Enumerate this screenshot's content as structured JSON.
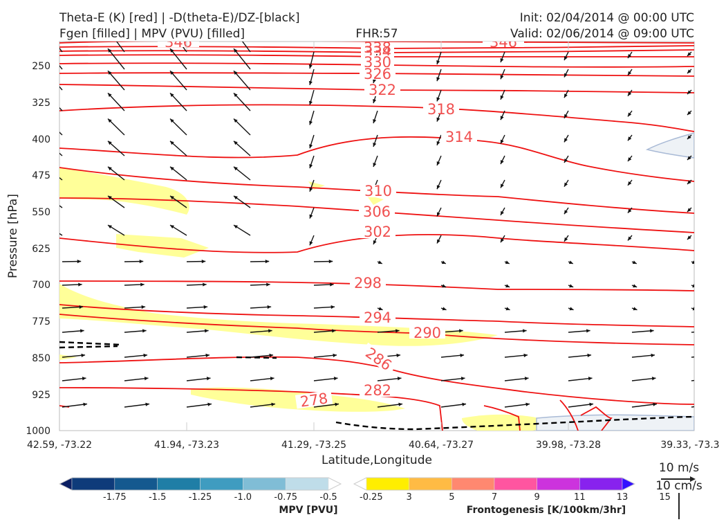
{
  "header": {
    "left_line1": "Theta-E (K) [red] | -D(theta-E)/DZ-[black]",
    "left_line2": "Fgen [filled] | MPV (PVU) [filled]",
    "center": "FHR:57",
    "init": "Init: 02/04/2014 @ 00:00 UTC",
    "valid": "Valid: 02/06/2014 @ 09:00 UTC"
  },
  "chart_data": {
    "type": "cross-section",
    "xlabel": "Latitude,Longitude",
    "ylabel": "Pressure [hPa]",
    "x_ticks": [
      "42.59, -73.22",
      "41.94, -73.23",
      "41.29, -73.25",
      "40.64, -73.27",
      "39.98, -73.28",
      "39.33, -73.3"
    ],
    "y_ticks": [
      250,
      325,
      400,
      475,
      550,
      625,
      700,
      775,
      850,
      925,
      1000
    ],
    "ylim": [
      200,
      1000
    ],
    "y_inverted": true,
    "series": [
      {
        "name": "Theta-E contours (K)",
        "contour_labels": [
          346,
          338,
          334,
          330,
          326,
          322,
          318,
          314,
          310,
          306,
          302,
          298,
          294,
          290,
          286,
          282,
          278
        ]
      }
    ],
    "wind_reference": {
      "horizontal": "10 m/s",
      "vertical": "10 cm/s"
    }
  },
  "colorbars": {
    "mpv": {
      "title": "MPV [PVU]",
      "ticks": [
        "-1.75",
        "-1.5",
        "-1.25",
        "-1.0",
        "-0.75",
        "-0.5",
        "-0.25"
      ],
      "colors": [
        "#0b1f63",
        "#0e3b7a",
        "#14598f",
        "#1f7ea6",
        "#3f9cc0",
        "#80bdd6",
        "#bfdde9",
        "#ffffff"
      ]
    },
    "fgen": {
      "title": "Frontogenesis [K/100km/3hr]",
      "ticks": [
        "3",
        "5",
        "7",
        "9",
        "11",
        "13",
        "15"
      ],
      "colors": [
        "#ffffff",
        "#ffee00",
        "#ffbb44",
        "#ff8870",
        "#ff55a0",
        "#cc33dd",
        "#8822ee",
        "#3311ff"
      ]
    }
  },
  "colors": {
    "theta_e": "#ee1111",
    "contour_label": "#f05050",
    "fgen_fill": "#ffff99",
    "mpv_fill": "#c8d8ec"
  }
}
